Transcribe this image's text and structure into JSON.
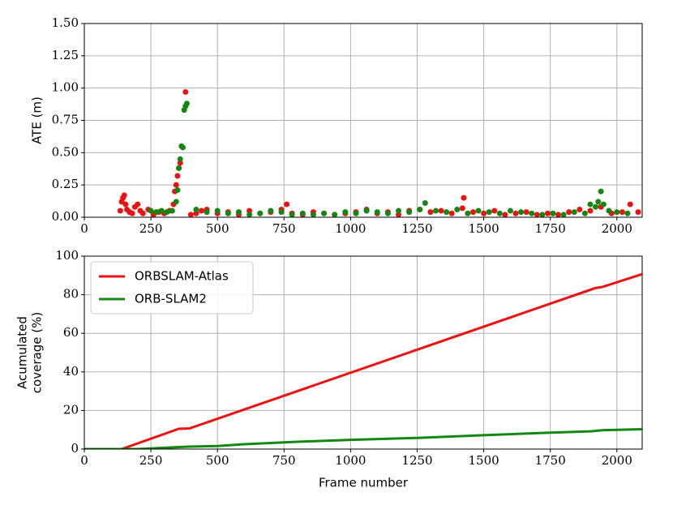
{
  "chart_data": [
    {
      "type": "scatter",
      "ylabel": "ATE (m)",
      "grid": true,
      "xlim": [
        0,
        2095
      ],
      "xticks": [
        0,
        250,
        500,
        750,
        1000,
        1250,
        1500,
        1750,
        2000
      ],
      "ylim": [
        0,
        1.5
      ],
      "yticks": [
        {
          "value": 0,
          "label": "0.00"
        },
        {
          "value": 0.25,
          "label": "0.25"
        },
        {
          "value": 0.5,
          "label": "0.50"
        },
        {
          "value": 0.75,
          "label": "0.75"
        },
        {
          "value": 1.0,
          "label": "1.00"
        },
        {
          "value": 1.25,
          "label": "1.25"
        },
        {
          "value": 1.5,
          "label": "1.50"
        }
      ],
      "series": [
        {
          "color": "#ee1111",
          "x": [
            135,
            140,
            145,
            150,
            155,
            160,
            170,
            180,
            190,
            200,
            210,
            220,
            240,
            260,
            280,
            300,
            320,
            335,
            340,
            345,
            350,
            355,
            360,
            380,
            400,
            420,
            440,
            460,
            500,
            540,
            580,
            620,
            660,
            700,
            740,
            760,
            780,
            820,
            860,
            900,
            940,
            980,
            1020,
            1060,
            1100,
            1140,
            1180,
            1220,
            1260,
            1300,
            1340,
            1380,
            1420,
            1425,
            1460,
            1500,
            1540,
            1580,
            1620,
            1660,
            1700,
            1740,
            1780,
            1820,
            1860,
            1900,
            1940,
            1980,
            2020,
            2050,
            2080
          ],
          "y": [
            0.05,
            0.12,
            0.15,
            0.17,
            0.1,
            0.06,
            0.04,
            0.03,
            0.08,
            0.1,
            0.05,
            0.03,
            0.06,
            0.02,
            0.04,
            0.03,
            0.05,
            0.1,
            0.2,
            0.25,
            0.32,
            0.38,
            0.42,
            0.97,
            0.02,
            0.03,
            0.05,
            0.06,
            0.03,
            0.04,
            0.02,
            0.05,
            0.03,
            0.04,
            0.06,
            0.1,
            0.03,
            0.02,
            0.04,
            0.03,
            0.02,
            0.03,
            0.04,
            0.06,
            0.03,
            0.04,
            0.02,
            0.05,
            0.06,
            0.04,
            0.05,
            0.03,
            0.07,
            0.15,
            0.04,
            0.03,
            0.05,
            0.02,
            0.03,
            0.04,
            0.02,
            0.03,
            0.02,
            0.04,
            0.06,
            0.05,
            0.08,
            0.03,
            0.04,
            0.1,
            0.04
          ]
        },
        {
          "color": "#118811",
          "x": [
            250,
            270,
            290,
            310,
            330,
            345,
            350,
            355,
            360,
            365,
            370,
            375,
            380,
            385,
            420,
            460,
            500,
            540,
            580,
            620,
            660,
            700,
            740,
            780,
            820,
            860,
            900,
            940,
            980,
            1020,
            1060,
            1100,
            1140,
            1180,
            1220,
            1260,
            1280,
            1320,
            1360,
            1400,
            1440,
            1480,
            1520,
            1560,
            1600,
            1640,
            1680,
            1720,
            1760,
            1800,
            1840,
            1880,
            1900,
            1920,
            1930,
            1940,
            1950,
            1970,
            2000,
            2040
          ],
          "y": [
            0.05,
            0.04,
            0.05,
            0.04,
            0.05,
            0.12,
            0.21,
            0.38,
            0.45,
            0.55,
            0.54,
            0.83,
            0.86,
            0.88,
            0.06,
            0.04,
            0.05,
            0.03,
            0.04,
            0.02,
            0.03,
            0.05,
            0.04,
            0.02,
            0.03,
            0.02,
            0.03,
            0.02,
            0.04,
            0.03,
            0.05,
            0.04,
            0.03,
            0.05,
            0.04,
            0.06,
            0.11,
            0.05,
            0.04,
            0.06,
            0.03,
            0.05,
            0.04,
            0.03,
            0.05,
            0.04,
            0.03,
            0.02,
            0.03,
            0.02,
            0.04,
            0.03,
            0.1,
            0.08,
            0.12,
            0.2,
            0.1,
            0.05,
            0.04,
            0.03
          ]
        }
      ]
    },
    {
      "type": "line",
      "xlabel": "Frame number",
      "ylabel": [
        "Acumulated",
        "coverage (%)"
      ],
      "grid": true,
      "legend": "upper left",
      "xlim": [
        0,
        2095
      ],
      "xticks": [
        0,
        250,
        500,
        750,
        1000,
        1250,
        1500,
        1750,
        2000
      ],
      "ylim": [
        0,
        100
      ],
      "yticks": [
        0,
        20,
        40,
        60,
        80,
        100
      ],
      "series": [
        {
          "name": "ORBSLAM-Atlas",
          "color": "#ee1111",
          "x": [
            0,
            140,
            355,
            395,
            1920,
            1945,
            2095
          ],
          "values": [
            0,
            0,
            10.5,
            10.7,
            83.5,
            84,
            90.7
          ]
        },
        {
          "name": "ORB-SLAM2",
          "color": "#118811",
          "x": [
            0,
            200,
            380,
            500,
            600,
            800,
            1000,
            1250,
            1500,
            1750,
            1900,
            1950,
            2095
          ],
          "values": [
            0,
            0,
            1.2,
            1.6,
            2.5,
            3.8,
            4.8,
            5.8,
            7.2,
            8.5,
            9.2,
            9.8,
            10.3
          ]
        }
      ]
    }
  ]
}
